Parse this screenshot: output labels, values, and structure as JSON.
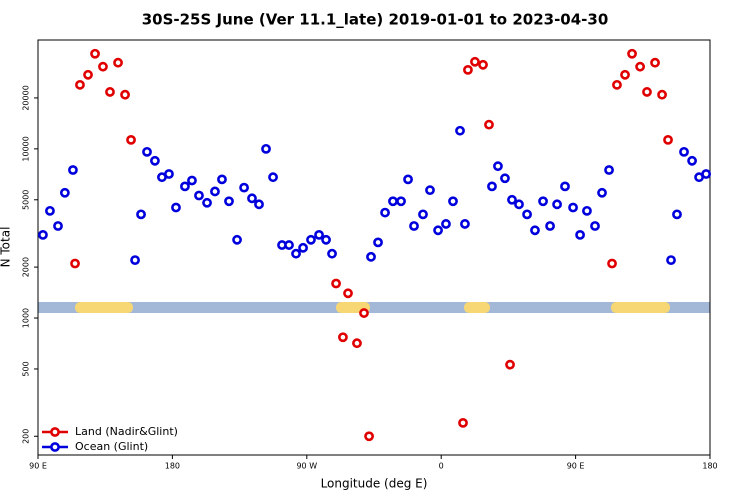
{
  "chart_data": {
    "type": "scatter",
    "title": "30S-25S June (Ver 11.1_late)   2019-01-01 to 2023-04-30",
    "x_label": "Longitude (deg E)",
    "y_label": "N Total",
    "xlim": [
      90,
      540
    ],
    "xticks": [
      {
        "value": 90,
        "label": "90 E"
      },
      180,
      {
        "value": 270,
        "label": "90 W"
      },
      {
        "value": 360,
        "label": "0"
      },
      {
        "value": 450,
        "label": "90 E"
      },
      {
        "value": 540,
        "label": "180"
      }
    ],
    "ylim": [
      155,
      44000
    ],
    "log_y": true,
    "yticks": [
      200,
      500,
      1000,
      2000,
      5000,
      10000,
      20000
    ],
    "legend": "lower left",
    "series": [
      {
        "name": "Land (Nadir&Glint)",
        "color": "#e00000",
        "x": [
          114.8,
          118.1,
          123.5,
          128.2,
          133.5,
          138.2,
          143.6,
          148.3,
          152.3,
          289.6,
          294.2,
          297.6,
          303.6,
          308.3,
          311.7,
          374.6,
          377.9,
          382.6,
          388.0,
          392.0,
          406.1,
          474.4,
          477.7,
          483.1,
          487.8,
          493.2,
          497.8,
          503.2,
          507.9,
          511.9
        ],
        "values": [
          2100,
          23900,
          27400,
          36500,
          30600,
          21700,
          32300,
          20900,
          11300,
          1600,
          770,
          1400,
          710,
          1070,
          200,
          240,
          29300,
          32700,
          31400,
          13900,
          530,
          2100,
          23900,
          27400,
          36500,
          30600,
          21700,
          32300,
          20900,
          11300
        ]
      },
      {
        "name": "Ocean (Glint)",
        "color": "#0000dd",
        "x": [
          93.3,
          98.0,
          103.4,
          108.0,
          113.4,
          155.0,
          159.0,
          163.0,
          168.3,
          173.0,
          177.7,
          182.4,
          188.4,
          193.1,
          197.8,
          203.2,
          208.5,
          213.2,
          217.9,
          223.3,
          228.0,
          233.3,
          238.0,
          242.7,
          247.4,
          253.4,
          258.1,
          262.8,
          267.5,
          272.8,
          278.2,
          282.9,
          286.9,
          313.0,
          317.7,
          322.4,
          327.7,
          333.1,
          337.8,
          341.8,
          347.8,
          352.5,
          357.9,
          363.2,
          367.9,
          372.6,
          375.9,
          394.0,
          398.0,
          402.7,
          407.4,
          412.1,
          417.5,
          422.8,
          428.2,
          432.9,
          437.6,
          442.9,
          448.3,
          453.0,
          457.6,
          463.0,
          467.7,
          472.4,
          513.9,
          517.9,
          522.6,
          528.0,
          532.7,
          537.4
        ],
        "values": [
          3100,
          4300,
          3500,
          5500,
          7500,
          2200,
          4100,
          9600,
          8500,
          6800,
          7100,
          4500,
          6000,
          6500,
          5300,
          4800,
          5600,
          6600,
          4900,
          2900,
          5900,
          5100,
          4700,
          10000,
          6800,
          2700,
          2700,
          2400,
          2600,
          2900,
          3100,
          2900,
          2400,
          2300,
          2800,
          4200,
          4900,
          4900,
          6600,
          3500,
          4100,
          5700,
          3300,
          3600,
          4900,
          12800,
          3600,
          6000,
          7900,
          6700,
          5000,
          4700,
          4100,
          3300,
          4900,
          3500,
          4700,
          6000,
          4500,
          3100,
          4300,
          3500,
          5500,
          7500,
          2200,
          4100,
          9600,
          8500,
          6800,
          7100
        ]
      }
    ]
  }
}
